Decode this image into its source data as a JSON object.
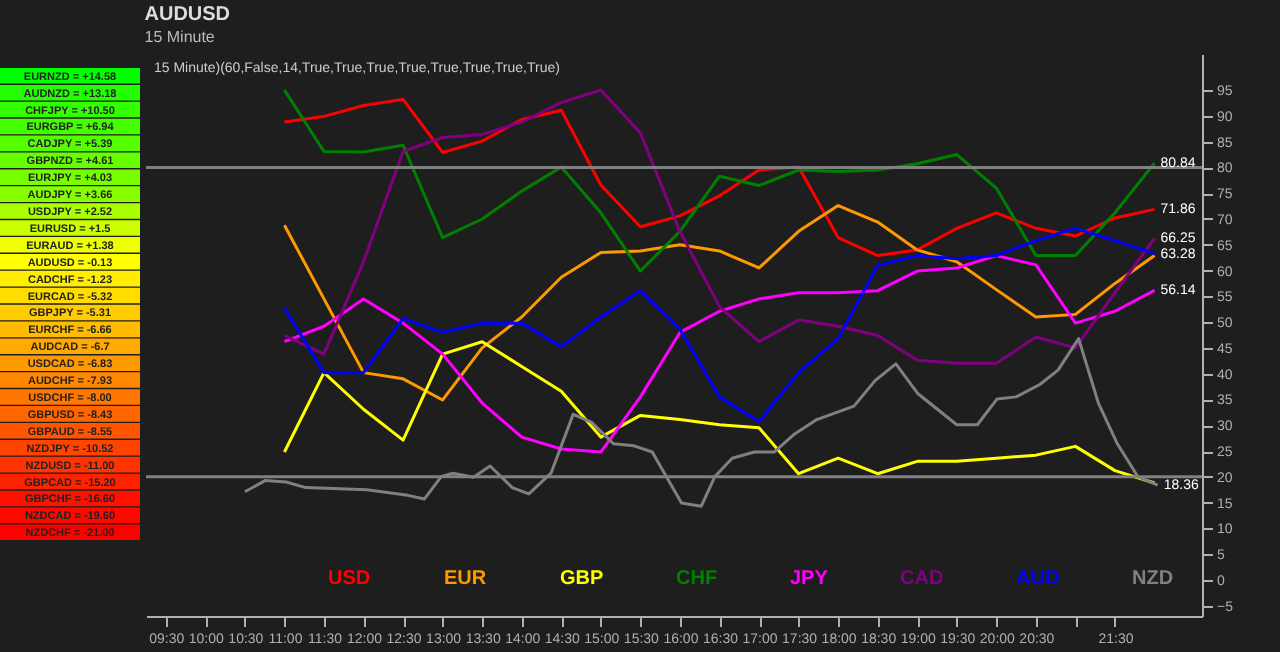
{
  "chart_data": [
    {
      "type": "other",
      "categories": [
        "EURNZD = +14.58",
        "AUDNZD = +13.18",
        "CHFJPY = +10.50",
        "EURGBP = +6.94",
        "CADJPY = +5.39",
        "GBPNZD = +4.61",
        "EURJPY = +4.03",
        "AUDJPY = +3.66",
        "USDJPY = +2.52",
        "EURUSD = +1.5",
        "EURAUD = +1.38",
        "AUDUSD = -0.13",
        "CADCHF = -1.23",
        "EURCAD = -5.32",
        "GBPJPY = -5.31",
        "EURCHF = -6.66",
        "AUDCAD = -6.7",
        "USDCAD = -6.83",
        "AUDCHF = -7.93",
        "USDCHF = -8.00",
        "GBPUSD = -8.43",
        "GBPAUD = -8.55",
        "NZDJPY = -10.52",
        "NZDUSD = -11.00",
        "GBPCAD = -15.20",
        "GBPCHF = -16.60",
        "NZDCAD = -19.60",
        "NZDCHF = -21.00"
      ],
      "colors": [
        "#00ff00",
        "#22ff00",
        "#33ff00",
        "#44ff00",
        "#55ff00",
        "#66ff00",
        "#77ff00",
        "#88ff00",
        "#aaff00",
        "#ccff00",
        "#eeff00",
        "#ffff00",
        "#ffee00",
        "#ffdd00",
        "#ffcc00",
        "#ffbb00",
        "#ffaa00",
        "#ff9900",
        "#ff8800",
        "#ff7700",
        "#ff6600",
        "#ff5500",
        "#ff4400",
        "#ff3300",
        "#ff2200",
        "#ff1100",
        "#ff0800",
        "#ff0000"
      ]
    },
    {
      "type": "line",
      "title": "AUDUSD",
      "subtitle": "15 Minute",
      "annotations": [
        "15 Minute)(60,False,14,True,True,True,True,True,True,True,True)"
      ],
      "x": [
        11,
        11.5,
        12,
        12.5,
        13,
        13.5,
        14,
        14.5,
        15,
        15.5,
        16,
        16.5,
        17,
        17.5,
        18,
        18.5,
        19,
        19.5,
        20,
        20.5,
        21,
        21.5,
        22
      ],
      "series": [
        {
          "name": "USD",
          "color": "#ff0000",
          "values": [
            88.8,
            89.9,
            92.0,
            93.2,
            82.9,
            85.1,
            89.3,
            91.1,
            76.6,
            68.5,
            70.6,
            74.5,
            79.5,
            80.1,
            66.4,
            62.9,
            64,
            68.2,
            71.2,
            68.2,
            66.7,
            70.2,
            71.86
          ],
          "value_labels": [
            null,
            null,
            null,
            null,
            null,
            null,
            null,
            null,
            null,
            null,
            null,
            null,
            null,
            null,
            null,
            null,
            null,
            null,
            null,
            null,
            null,
            null,
            "71.86"
          ]
        },
        {
          "name": "EUR",
          "color": "#ff9900",
          "values": [
            68.8,
            54.5,
            40.2,
            39,
            34.9,
            45,
            51,
            58.7,
            63.5,
            63.8,
            65,
            63.8,
            60.5,
            67.6,
            72.6,
            69.4,
            64,
            61.7,
            56.3,
            51,
            51.5,
            57.5,
            62.9
          ]
        },
        {
          "name": "GBP",
          "color": "#ffff00",
          "values": [
            24.8,
            40.2,
            33.1,
            27.1,
            43.8,
            46.2,
            41.4,
            36.6,
            27.7,
            31.9,
            31.1,
            30.1,
            29.5,
            20.6,
            23.6,
            20.6,
            23,
            23,
            23.6,
            24.2,
            25.9,
            21.2,
            18.8
          ]
        },
        {
          "name": "CHF",
          "color": "#008000",
          "values": [
            95,
            83.1,
            83,
            84.3,
            66.4,
            70,
            75.4,
            80.1,
            71.2,
            59.9,
            67.6,
            78.3,
            76.5,
            79.5,
            79.2,
            79.5,
            80.7,
            82.5,
            76,
            62.9,
            62.9,
            71.2,
            80.84
          ],
          "value_labels": [
            null,
            null,
            null,
            null,
            null,
            null,
            null,
            null,
            null,
            null,
            null,
            null,
            null,
            null,
            null,
            null,
            null,
            null,
            null,
            null,
            null,
            null,
            "80.84"
          ]
        },
        {
          "name": "JPY",
          "color": "#ff00ff",
          "values": [
            46.2,
            49.2,
            54.5,
            49.8,
            43.8,
            34.3,
            27.7,
            25.4,
            24.8,
            35.5,
            48,
            52.1,
            54.5,
            55.7,
            55.7,
            56.1,
            59.9,
            60.5,
            62.9,
            61.1,
            49.8,
            52.1,
            56.14
          ],
          "value_labels": [
            null,
            null,
            null,
            null,
            null,
            null,
            null,
            null,
            null,
            null,
            null,
            null,
            null,
            null,
            null,
            null,
            null,
            null,
            null,
            null,
            null,
            null,
            "56.14"
          ]
        },
        {
          "name": "CAD",
          "color": "#800080",
          "values": [
            47.4,
            43.8,
            61.7,
            83.1,
            85.8,
            86.4,
            88.8,
            92.6,
            95,
            86.7,
            67.6,
            53,
            46.2,
            50.4,
            49.2,
            47.4,
            42.6,
            42,
            42,
            47.1,
            45,
            55.7,
            66.25
          ],
          "value_labels": [
            null,
            null,
            null,
            null,
            null,
            null,
            null,
            null,
            null,
            null,
            null,
            null,
            null,
            null,
            null,
            null,
            null,
            null,
            null,
            null,
            null,
            null,
            "66.25"
          ]
        },
        {
          "name": "AUD",
          "color": "#0000ff",
          "values": [
            52.7,
            40.2,
            40.2,
            50.7,
            48,
            49.8,
            49.8,
            45.2,
            51,
            56.1,
            48.6,
            35.5,
            30.7,
            40.2,
            46.8,
            61,
            62.9,
            62.3,
            62.9,
            65.8,
            68.2,
            65.8,
            63.28
          ],
          "value_labels": [
            null,
            null,
            null,
            null,
            null,
            null,
            null,
            null,
            null,
            null,
            null,
            null,
            null,
            null,
            null,
            null,
            null,
            null,
            null,
            null,
            null,
            null,
            "63.28"
          ]
        },
        {
          "name": "NZD",
          "color": "#808080",
          "x": [
            10.5,
            10.76,
            11.02,
            11.27,
            12.04,
            12.56,
            12.77,
            12.98,
            13.13,
            13.39,
            13.6,
            13.88,
            14.09,
            14.37,
            14.65,
            14.88,
            15.16,
            15.42,
            15.65,
            16.02,
            16.27,
            16.44,
            16.66,
            16.94,
            17.19,
            17.45,
            17.73,
            18.2,
            18.47,
            18.73,
            19.01,
            19.5,
            19.76,
            20.01,
            20.25,
            20.55,
            20.78,
            21.04,
            21.29,
            21.53,
            21.79,
            22.04
          ],
          "values": [
            17.1,
            19.3,
            19,
            17.9,
            17.5,
            16.4,
            15.7,
            20,
            20.7,
            19.9,
            22.1,
            17.9,
            16.7,
            20.7,
            32.1,
            30.6,
            26.4,
            26,
            24.8,
            14.9,
            14.3,
            20,
            23.6,
            24.8,
            24.8,
            28.3,
            31.1,
            33.7,
            38.7,
            41.9,
            36.1,
            30.1,
            30.1,
            35.1,
            35.5,
            37.9,
            40.7,
            46.8,
            34.3,
            26.4,
            20,
            18.36
          ],
          "value_labels": [
            null,
            null,
            null,
            null,
            null,
            null,
            null,
            null,
            null,
            null,
            null,
            null,
            null,
            null,
            null,
            null,
            null,
            null,
            null,
            null,
            null,
            null,
            null,
            null,
            null,
            null,
            null,
            null,
            null,
            null,
            null,
            null,
            null,
            null,
            null,
            null,
            null,
            null,
            null,
            null,
            null,
            "18.36"
          ]
        }
      ],
      "xlim": [
        9.25,
        22.6
      ],
      "xticks": [
        {
          "value": 9.5,
          "label": "09:30"
        },
        {
          "value": 10,
          "label": "10:00"
        },
        {
          "value": 10.5,
          "label": "10:30"
        },
        {
          "value": 11,
          "label": "11:00"
        },
        {
          "value": 11.5,
          "label": "11:30"
        },
        {
          "value": 12,
          "label": "12:00"
        },
        {
          "value": 12.5,
          "label": "12:30"
        },
        {
          "value": 13,
          "label": "13:00"
        },
        {
          "value": 13.5,
          "label": "13:30"
        },
        {
          "value": 14,
          "label": "14:00"
        },
        {
          "value": 14.5,
          "label": "14:30"
        },
        {
          "value": 15,
          "label": "15:00"
        },
        {
          "value": 15.5,
          "label": "15:30"
        },
        {
          "value": 16,
          "label": "16:00"
        },
        {
          "value": 16.5,
          "label": "16:30"
        },
        {
          "value": 17,
          "label": "17:00"
        },
        {
          "value": 17.5,
          "label": "17:30"
        },
        {
          "value": 18,
          "label": "18:00"
        },
        {
          "value": 18.5,
          "label": "18:30"
        },
        {
          "value": 19,
          "label": "19:00"
        },
        {
          "value": 19.5,
          "label": "19:30"
        },
        {
          "value": 20,
          "label": "20:00"
        },
        {
          "value": 20.5,
          "label": "20:30"
        },
        {
          "value": 21,
          "label": null
        },
        {
          "value": 21.5,
          "label": "21:30"
        }
      ],
      "ylim": [
        -7,
        102
      ],
      "yticks": [
        -5,
        0,
        5,
        10,
        15,
        20,
        25,
        30,
        35,
        40,
        45,
        50,
        55,
        60,
        65,
        70,
        75,
        80,
        85,
        90,
        95
      ],
      "ref_lines": [
        {
          "axis": "y",
          "value": 80,
          "color": "#808080"
        },
        {
          "axis": "y",
          "value": 20,
          "color": "#808080"
        }
      ],
      "legend": "bottom right",
      "grid": false
    }
  ]
}
